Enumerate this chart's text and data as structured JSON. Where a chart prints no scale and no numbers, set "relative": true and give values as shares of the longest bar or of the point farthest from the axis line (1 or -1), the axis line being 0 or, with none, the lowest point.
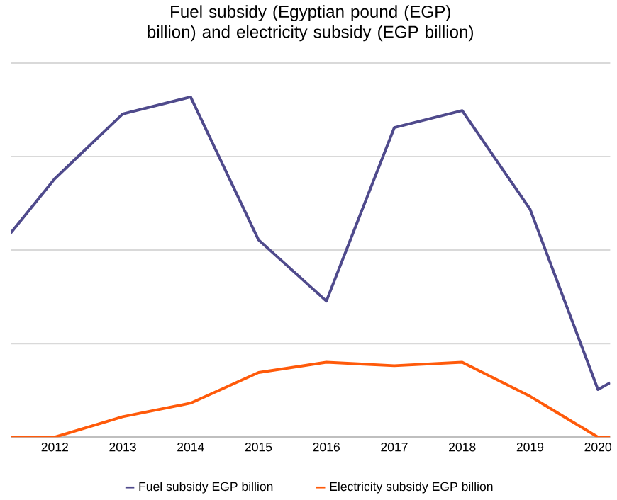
{
  "chart_data": {
    "type": "line",
    "title": "Fuel subsidy (Egyptian pound (EGP) billion) and electricity subsidy (EGP billion)",
    "relative": true,
    "x": [
      2011.35,
      2012,
      2013,
      2014,
      2015,
      2016,
      2017,
      2018,
      2019,
      2020,
      2020.18
    ],
    "xlim": [
      2011.35,
      2020.18
    ],
    "xticks": [
      2012,
      2013,
      2014,
      2015,
      2016,
      2017,
      2018,
      2019,
      2020
    ],
    "series": [
      {
        "name": "Fuel subsidy EGP billion",
        "color": "#4f4a8c",
        "values": [
          0.6,
          0.76,
          0.95,
          1.0,
          0.58,
          0.4,
          0.91,
          0.96,
          0.67,
          0.14,
          0.16
        ]
      },
      {
        "name": "Electricity subsidy EGP billion",
        "color": "#ff5a0a",
        "values": [
          0,
          0,
          0.06,
          0.1,
          0.19,
          0.22,
          0.21,
          0.22,
          0.12,
          0,
          0
        ]
      }
    ],
    "grid": "y",
    "legend": "bottom",
    "marker": "none",
    "line_style": "solid"
  }
}
